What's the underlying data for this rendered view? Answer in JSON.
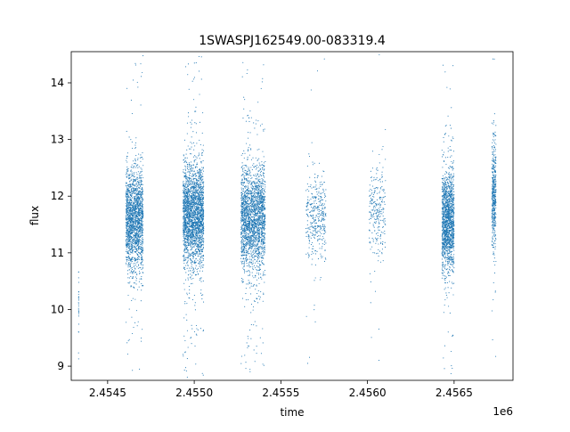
{
  "chart_data": {
    "type": "scatter",
    "title": "1SWASPJ162549.00-083319.4",
    "xlabel": "time",
    "ylabel": "flux",
    "x_offset_label": "1e6",
    "xlim": [
      2454290,
      2456840
    ],
    "ylim": [
      8.75,
      14.55
    ],
    "x_ticks": [
      2454500,
      2455000,
      2455500,
      2456000,
      2456500
    ],
    "x_tick_labels": [
      "2.4545",
      "2.4550",
      "2.4555",
      "2.4560",
      "2.4565"
    ],
    "y_ticks": [
      9,
      10,
      11,
      12,
      13,
      14
    ],
    "y_tick_labels": [
      "9",
      "10",
      "11",
      "12",
      "13",
      "14"
    ],
    "grid": false,
    "marker_color": "#1f77b4",
    "series": [
      {
        "observing_clusters": [
          {
            "x_start": 2454332,
            "x_end": 2454334,
            "y_center": 10.2,
            "y_spread": 0.35,
            "count": 25,
            "outliers": 2
          },
          {
            "x_start": 2454605,
            "x_end": 2454705,
            "y_center": 11.6,
            "y_spread": 0.45,
            "count": 1800,
            "outliers": 60
          },
          {
            "x_start": 2454935,
            "x_end": 2455055,
            "y_center": 11.65,
            "y_spread": 0.45,
            "count": 2300,
            "outliers": 120
          },
          {
            "x_start": 2455270,
            "x_end": 2455410,
            "y_center": 11.6,
            "y_spread": 0.45,
            "count": 2100,
            "outliers": 110
          },
          {
            "x_start": 2455645,
            "x_end": 2455760,
            "y_center": 11.65,
            "y_spread": 0.4,
            "count": 380,
            "outliers": 12
          },
          {
            "x_start": 2456010,
            "x_end": 2456105,
            "y_center": 11.7,
            "y_spread": 0.4,
            "count": 260,
            "outliers": 10
          },
          {
            "x_start": 2456430,
            "x_end": 2456500,
            "y_center": 11.55,
            "y_spread": 0.45,
            "count": 1500,
            "outliers": 45
          },
          {
            "x_start": 2456718,
            "x_end": 2456742,
            "y_center": 12.0,
            "y_spread": 0.45,
            "count": 450,
            "outliers": 20
          }
        ]
      }
    ]
  }
}
